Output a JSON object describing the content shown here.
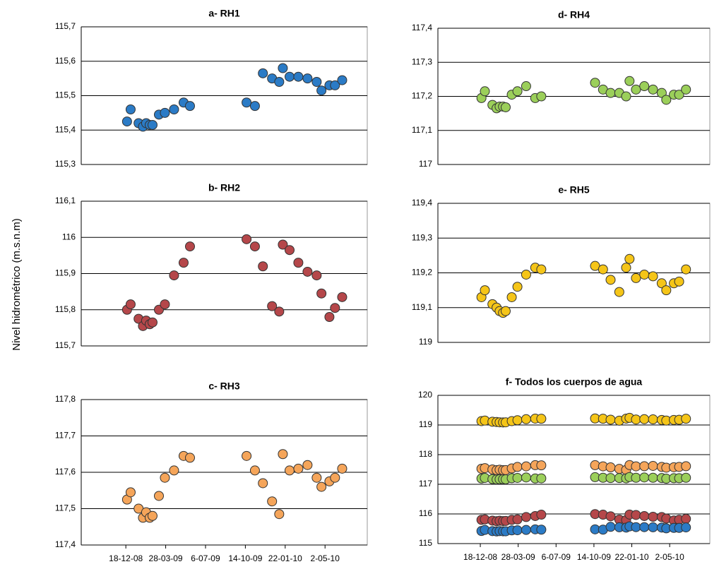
{
  "y_axis_label": "Nivel hidrométrico (m.s.n.m)",
  "chart_data": [
    {
      "type": "scatter",
      "title": "a- RH1",
      "x": [
        "2008-12-21",
        "2008-12-30",
        "2009-01-19",
        "2009-01-30",
        "2009-02-07",
        "2009-02-16",
        "2009-02-23",
        "2009-03-11",
        "2009-03-26",
        "2009-04-18",
        "2009-05-12",
        "2009-05-28",
        "2009-10-17",
        "2009-11-07",
        "2009-11-27",
        "2009-12-20",
        "2010-01-07",
        "2010-01-16",
        "2010-02-02",
        "2010-02-24",
        "2010-03-19",
        "2010-04-11",
        "2010-04-23",
        "2010-05-13",
        "2010-05-27",
        "2010-06-14"
      ],
      "series": [
        {
          "color": "#2b7bc6",
          "values": [
            115.425,
            115.46,
            115.42,
            115.41,
            115.42,
            115.415,
            115.415,
            115.445,
            115.45,
            115.46,
            115.48,
            115.47,
            115.48,
            115.47,
            115.565,
            115.55,
            115.54,
            115.58,
            115.555,
            115.555,
            115.55,
            115.54,
            115.515,
            115.53,
            115.53,
            115.545
          ]
        }
      ],
      "xlim": [
        "2008-08-28",
        "2010-08-16"
      ],
      "ylim": [
        115.3,
        115.7
      ],
      "yticks": [
        {
          "value": 115.3,
          "label": "115,3"
        },
        {
          "value": 115.4,
          "label": "115,4"
        },
        {
          "value": 115.5,
          "label": "115,5"
        },
        {
          "value": 115.6,
          "label": "115,6"
        },
        {
          "value": 115.7,
          "label": "115,7"
        }
      ],
      "grid": true
    },
    {
      "type": "scatter",
      "title": "b- RH2",
      "x": [
        "2008-12-21",
        "2008-12-30",
        "2009-01-19",
        "2009-01-30",
        "2009-02-07",
        "2009-02-16",
        "2009-02-23",
        "2009-03-11",
        "2009-03-26",
        "2009-04-18",
        "2009-05-12",
        "2009-05-28",
        "2009-10-17",
        "2009-11-07",
        "2009-11-27",
        "2009-12-20",
        "2010-01-07",
        "2010-01-16",
        "2010-02-02",
        "2010-02-24",
        "2010-03-19",
        "2010-04-11",
        "2010-04-23",
        "2010-05-13",
        "2010-05-27",
        "2010-06-14"
      ],
      "series": [
        {
          "color": "#b5474a",
          "values": [
            115.8,
            115.815,
            115.775,
            115.755,
            115.77,
            115.76,
            115.765,
            115.8,
            115.815,
            115.895,
            115.93,
            115.975,
            115.995,
            115.975,
            115.92,
            115.81,
            115.795,
            115.98,
            115.965,
            115.93,
            115.905,
            115.895,
            115.845,
            115.78,
            115.805,
            115.835
          ]
        }
      ],
      "xlim": [
        "2008-08-28",
        "2010-08-16"
      ],
      "ylim": [
        115.7,
        116.1
      ],
      "yticks": [
        {
          "value": 115.7,
          "label": "115,7"
        },
        {
          "value": 115.8,
          "label": "115,8"
        },
        {
          "value": 115.9,
          "label": "115,9"
        },
        116,
        {
          "value": 116.1,
          "label": "116,1"
        }
      ],
      "grid": true
    },
    {
      "type": "scatter",
      "title": "c- RH3",
      "x": [
        "2008-12-21",
        "2008-12-30",
        "2009-01-19",
        "2009-01-30",
        "2009-02-07",
        "2009-02-16",
        "2009-02-23",
        "2009-03-11",
        "2009-03-26",
        "2009-04-18",
        "2009-05-12",
        "2009-05-28",
        "2009-10-17",
        "2009-11-07",
        "2009-11-27",
        "2009-12-20",
        "2010-01-07",
        "2010-01-16",
        "2010-02-02",
        "2010-02-24",
        "2010-03-19",
        "2010-04-11",
        "2010-04-23",
        "2010-05-13",
        "2010-05-27",
        "2010-06-14"
      ],
      "series": [
        {
          "color": "#f5a55a",
          "values": [
            117.525,
            117.545,
            117.5,
            117.475,
            117.49,
            117.475,
            117.48,
            117.535,
            117.585,
            117.605,
            117.645,
            117.64,
            117.645,
            117.605,
            117.57,
            117.52,
            117.485,
            117.65,
            117.605,
            117.61,
            117.62,
            117.585,
            117.56,
            117.575,
            117.585,
            117.61
          ]
        }
      ],
      "xlim": [
        "2008-08-28",
        "2010-08-16"
      ],
      "ylim": [
        117.4,
        117.8
      ],
      "xticks": [
        {
          "value": "2008-12-18",
          "label": "18-12-08"
        },
        {
          "value": "2009-03-28",
          "label": "28-03-09"
        },
        {
          "value": "2009-07-06",
          "label": "6-07-09"
        },
        {
          "value": "2009-10-14",
          "label": "14-10-09"
        },
        {
          "value": "2010-01-22",
          "label": "22-01-10"
        },
        {
          "value": "2010-05-02",
          "label": "2-05-10"
        }
      ],
      "yticks": [
        {
          "value": 117.4,
          "label": "117,4"
        },
        {
          "value": 117.5,
          "label": "117,5"
        },
        {
          "value": 117.6,
          "label": "117,6"
        },
        {
          "value": 117.7,
          "label": "117,7"
        },
        {
          "value": 117.8,
          "label": "117,8"
        }
      ],
      "grid": true
    },
    {
      "type": "scatter",
      "title": "d- RH4",
      "x": [
        "2008-12-21",
        "2008-12-30",
        "2009-01-19",
        "2009-01-30",
        "2009-02-07",
        "2009-02-16",
        "2009-02-23",
        "2009-03-11",
        "2009-03-26",
        "2009-04-18",
        "2009-05-12",
        "2009-05-28",
        "2009-10-17",
        "2009-11-07",
        "2009-11-27",
        "2009-12-20",
        "2010-01-07",
        "2010-01-16",
        "2010-02-02",
        "2010-02-24",
        "2010-03-19",
        "2010-04-11",
        "2010-04-23",
        "2010-05-13",
        "2010-05-27",
        "2010-06-14"
      ],
      "series": [
        {
          "color": "#9bcf5a",
          "values": [
            117.195,
            117.215,
            117.175,
            117.165,
            117.17,
            117.17,
            117.168,
            117.205,
            117.215,
            117.23,
            117.195,
            117.2,
            117.24,
            117.22,
            117.21,
            117.21,
            117.2,
            117.245,
            117.22,
            117.23,
            117.22,
            117.21,
            117.19,
            117.205,
            117.205,
            117.22
          ]
        }
      ],
      "xlim": [
        "2008-08-28",
        "2010-08-16"
      ],
      "ylim": [
        117,
        117.4
      ],
      "yticks": [
        117,
        {
          "value": 117.1,
          "label": "117,1"
        },
        {
          "value": 117.2,
          "label": "117,2"
        },
        {
          "value": 117.3,
          "label": "117,3"
        },
        {
          "value": 117.4,
          "label": "117,4"
        }
      ],
      "grid": true
    },
    {
      "type": "scatter",
      "title": "e- RH5",
      "x": [
        "2008-12-21",
        "2008-12-30",
        "2009-01-19",
        "2009-01-30",
        "2009-02-07",
        "2009-02-16",
        "2009-02-23",
        "2009-03-11",
        "2009-03-26",
        "2009-04-18",
        "2009-05-12",
        "2009-05-28",
        "2009-10-17",
        "2009-11-07",
        "2009-11-27",
        "2009-12-20",
        "2010-01-07",
        "2010-01-16",
        "2010-02-02",
        "2010-02-24",
        "2010-03-19",
        "2010-04-11",
        "2010-04-23",
        "2010-05-13",
        "2010-05-27",
        "2010-06-14"
      ],
      "series": [
        {
          "color": "#f5c518",
          "values": [
            119.13,
            119.15,
            119.11,
            119.1,
            119.09,
            119.085,
            119.09,
            119.13,
            119.16,
            119.195,
            119.215,
            119.21,
            119.22,
            119.21,
            119.18,
            119.145,
            119.215,
            119.24,
            119.185,
            119.195,
            119.19,
            119.17,
            119.15,
            119.17,
            119.175,
            119.21
          ]
        }
      ],
      "xlim": [
        "2008-08-28",
        "2010-08-16"
      ],
      "ylim": [
        119,
        119.4
      ],
      "yticks": [
        119,
        {
          "value": 119.1,
          "label": "119,1"
        },
        {
          "value": 119.2,
          "label": "119,2"
        },
        {
          "value": 119.3,
          "label": "119,3"
        },
        {
          "value": 119.4,
          "label": "119,4"
        }
      ],
      "grid": true
    },
    {
      "type": "scatter",
      "title": "f- Todos los cuerpos de agua",
      "x": [
        "2008-12-21",
        "2008-12-30",
        "2009-01-19",
        "2009-01-30",
        "2009-02-07",
        "2009-02-16",
        "2009-02-23",
        "2009-03-11",
        "2009-03-26",
        "2009-04-18",
        "2009-05-12",
        "2009-05-28",
        "2009-10-17",
        "2009-11-07",
        "2009-11-27",
        "2009-12-20",
        "2010-01-07",
        "2010-01-16",
        "2010-02-02",
        "2010-02-24",
        "2010-03-19",
        "2010-04-11",
        "2010-04-23",
        "2010-05-13",
        "2010-05-27",
        "2010-06-14"
      ],
      "series": [
        {
          "color": "#f5c518",
          "values": [
            119.13,
            119.15,
            119.11,
            119.1,
            119.09,
            119.085,
            119.09,
            119.13,
            119.16,
            119.195,
            119.215,
            119.21,
            119.22,
            119.21,
            119.18,
            119.145,
            119.215,
            119.24,
            119.185,
            119.195,
            119.19,
            119.17,
            119.15,
            119.17,
            119.175,
            119.21
          ]
        },
        {
          "color": "#f5a55a",
          "values": [
            117.525,
            117.545,
            117.5,
            117.475,
            117.49,
            117.475,
            117.48,
            117.535,
            117.585,
            117.605,
            117.645,
            117.64,
            117.645,
            117.605,
            117.57,
            117.52,
            117.485,
            117.65,
            117.605,
            117.61,
            117.62,
            117.585,
            117.56,
            117.575,
            117.585,
            117.61
          ]
        },
        {
          "color": "#9bcf5a",
          "values": [
            117.195,
            117.215,
            117.175,
            117.165,
            117.17,
            117.17,
            117.168,
            117.205,
            117.215,
            117.23,
            117.195,
            117.2,
            117.24,
            117.22,
            117.21,
            117.21,
            117.2,
            117.245,
            117.22,
            117.23,
            117.22,
            117.21,
            117.19,
            117.205,
            117.205,
            117.22
          ]
        },
        {
          "color": "#b5474a",
          "values": [
            115.8,
            115.815,
            115.775,
            115.755,
            115.77,
            115.76,
            115.765,
            115.8,
            115.815,
            115.895,
            115.93,
            115.975,
            115.995,
            115.975,
            115.92,
            115.81,
            115.795,
            115.98,
            115.965,
            115.93,
            115.905,
            115.895,
            115.845,
            115.78,
            115.805,
            115.835
          ]
        },
        {
          "color": "#2b7bc6",
          "values": [
            115.425,
            115.46,
            115.42,
            115.41,
            115.42,
            115.415,
            115.415,
            115.445,
            115.45,
            115.46,
            115.48,
            115.47,
            115.48,
            115.47,
            115.565,
            115.55,
            115.54,
            115.58,
            115.555,
            115.555,
            115.55,
            115.54,
            115.515,
            115.53,
            115.53,
            115.545
          ]
        }
      ],
      "xlim": [
        "2008-08-28",
        "2010-08-16"
      ],
      "ylim": [
        115,
        120
      ],
      "xticks": [
        {
          "value": "2008-12-18",
          "label": "18-12-08"
        },
        {
          "value": "2009-03-28",
          "label": "28-03-09"
        },
        {
          "value": "2009-07-06",
          "label": "6-07-09"
        },
        {
          "value": "2009-10-14",
          "label": "14-10-09"
        },
        {
          "value": "2010-01-22",
          "label": "22-01-10"
        },
        {
          "value": "2010-05-02",
          "label": "2-05-10"
        }
      ],
      "yticks": [
        115,
        116,
        117,
        118,
        119,
        120
      ],
      "grid": true
    }
  ]
}
